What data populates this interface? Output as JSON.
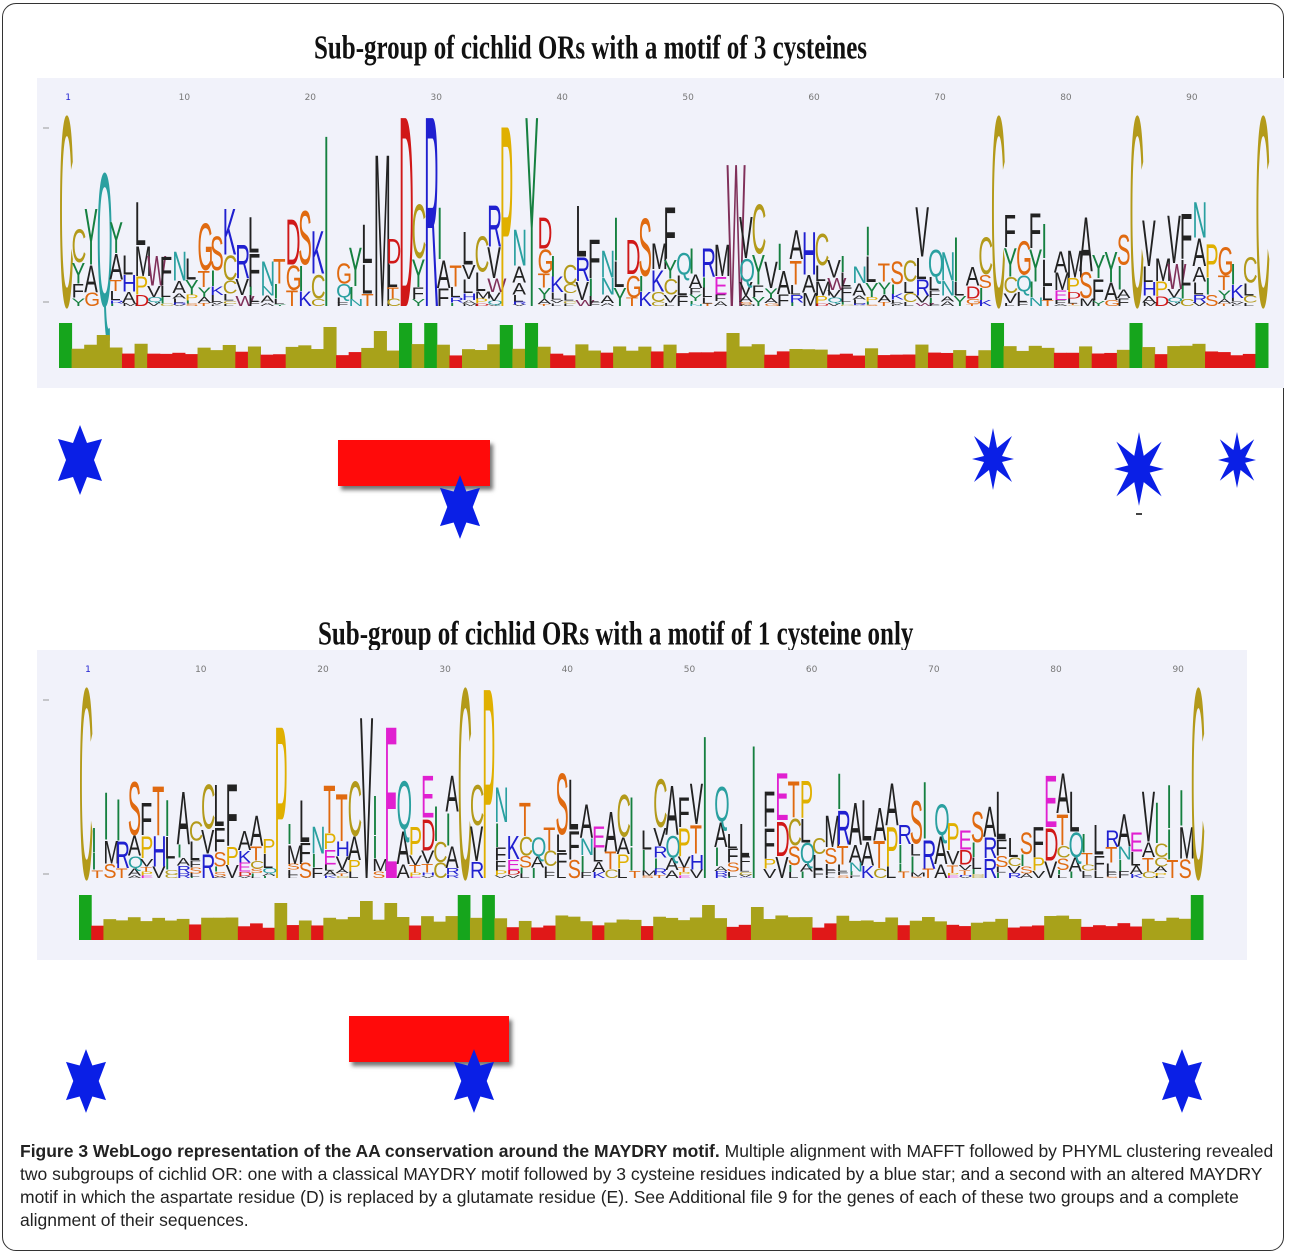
{
  "figure": {
    "panel1_title": "Sub-group of cichlid ORs with a motif of 3 cysteines",
    "panel2_title": "Sub-group of cichlid ORs with a motif of 1 cysteine only",
    "caption_lead": "Figure 3 WebLogo representation of the AA conservation around the MAYDRY motif.",
    "caption_body": "Multiple alignment with MAFFT followed by PHYML clustering revealed two subgroups of cichlid OR: one with a classical MAYDRY motif followed by 3 cysteine residues indicated by a blue star; and a second with an altered MAYDRY motif in which the aspartate residue (D) is replaced by a glutamate residue (E). See Additional file 9 for the genes of each of these two groups and a complete alignment of their sequences."
  },
  "colors": {
    "cysteine": "#b39a1a",
    "star": "#0a1fe6",
    "motif_bar": "#ff0a0a",
    "conservation_high": "#16a51c",
    "conservation_mid": "#a8a21a",
    "conservation_low": "#e01818"
  },
  "logo1": {
    "axis_ticks": [
      "1",
      "10",
      "20",
      "30",
      "40",
      "50",
      "60",
      "70",
      "80",
      "90"
    ],
    "letters": "CLQMFYYTLGSEFFLIAAMAYDRYVAICPLVQHSIMTRVLILLALWVPFCYAVLYLLTARKLICGNLIIFCDNVSTLKAIC",
    "tall_letters": [
      {
        "letter": "C",
        "pos": 1,
        "height": 1.0
      },
      {
        "letter": "Q",
        "pos": 4,
        "height": 0.7
      },
      {
        "letter": "I",
        "pos": 22,
        "height": 0.9
      },
      {
        "letter": "M",
        "pos": 26,
        "height": 0.8
      },
      {
        "letter": "D",
        "pos": 28,
        "height": 1.0
      },
      {
        "letter": "R",
        "pos": 30,
        "height": 1.0
      },
      {
        "letter": "P",
        "pos": 36,
        "height": 0.95
      },
      {
        "letter": "Y",
        "pos": 38,
        "height": 1.0
      },
      {
        "letter": "W",
        "pos": 54,
        "height": 0.75
      },
      {
        "letter": "C",
        "pos": 75,
        "height": 1.0
      },
      {
        "letter": "C",
        "pos": 86,
        "height": 1.0
      },
      {
        "letter": "C",
        "pos": 96,
        "height": 1.0
      }
    ],
    "stars": 5
  },
  "logo2": {
    "axis_ticks": [
      "1",
      "10",
      "20",
      "30",
      "40",
      "50",
      "60",
      "70",
      "80",
      "90"
    ],
    "letters": "CILLALTTNSPLTIAAMAERIVAICPIRHQICTRRTALIVVAVSSLPCIDIFIFLAESLSFFQKFC",
    "tall_letters": [
      {
        "letter": "C",
        "pos": 1,
        "height": 1.0
      },
      {
        "letter": "P",
        "pos": 17,
        "height": 0.8
      },
      {
        "letter": "V",
        "pos": 24,
        "height": 0.85
      },
      {
        "letter": "E",
        "pos": 26,
        "height": 0.8
      },
      {
        "letter": "C",
        "pos": 32,
        "height": 1.0
      },
      {
        "letter": "P",
        "pos": 34,
        "height": 1.0
      },
      {
        "letter": "I",
        "pos": 52,
        "height": 0.75
      },
      {
        "letter": "I",
        "pos": 56,
        "height": 0.7
      },
      {
        "letter": "C",
        "pos": 92,
        "height": 1.0
      }
    ],
    "stars": 3
  }
}
